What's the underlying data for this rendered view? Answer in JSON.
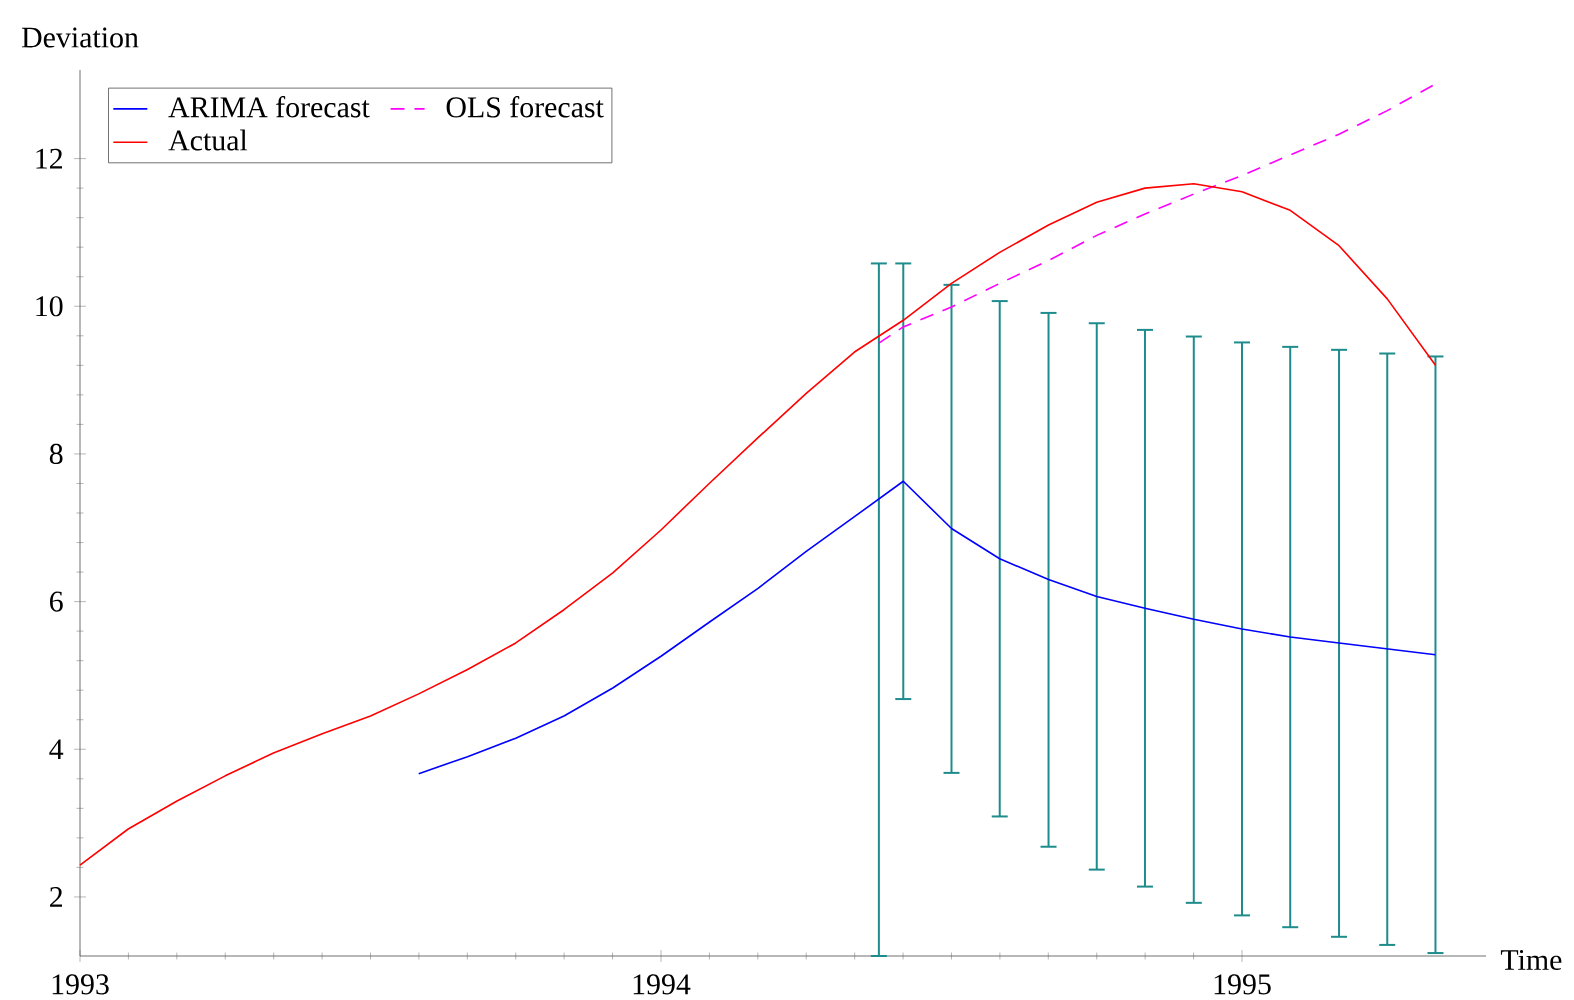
{
  "chart_data": {
    "type": "line",
    "xlabel": "Time",
    "ylabel": "Deviation",
    "xlim": [
      1993,
      1995.42
    ],
    "ylim": [
      1.2,
      13.2
    ],
    "xticks": [
      1993,
      1994,
      1995
    ],
    "yticks": [
      2,
      4,
      6,
      8,
      10,
      12
    ],
    "grid": false,
    "legend": "top left",
    "marker": "none",
    "series": [
      {
        "name": "ARIMA forecast",
        "color": "#0000ff",
        "line_style": "solid",
        "x": [
          1993.583,
          1993.667,
          1993.75,
          1993.833,
          1993.917,
          1994.0,
          1994.083,
          1994.167,
          1994.25,
          1994.333,
          1994.375,
          1994.417,
          1994.5,
          1994.583,
          1994.667,
          1994.75,
          1994.833,
          1994.917,
          1995.0,
          1995.083,
          1995.167,
          1995.25,
          1995.333
        ],
        "values": [
          3.67,
          3.9,
          4.15,
          4.45,
          4.83,
          5.26,
          5.72,
          6.18,
          6.68,
          7.15,
          7.39,
          7.63,
          6.99,
          6.58,
          6.3,
          6.07,
          5.91,
          5.76,
          5.63,
          5.52,
          5.44,
          5.36,
          5.28
        ],
        "errors": [
          null,
          null,
          null,
          null,
          null,
          null,
          null,
          null,
          null,
          null,
          [
            1.2,
            10.58
          ],
          [
            4.68,
            10.58
          ],
          [
            3.68,
            10.29
          ],
          [
            3.09,
            10.07
          ],
          [
            2.68,
            9.91
          ],
          [
            2.37,
            9.77
          ],
          [
            2.14,
            9.68
          ],
          [
            1.92,
            9.59
          ],
          [
            1.75,
            9.51
          ],
          [
            1.59,
            9.45
          ],
          [
            1.46,
            9.41
          ],
          [
            1.35,
            9.36
          ],
          [
            1.24,
            9.32
          ]
        ]
      },
      {
        "name": "OLS forecast",
        "color": "#ff00ff",
        "line_style": "dashed",
        "x": [
          1994.375,
          1994.417,
          1994.5,
          1994.583,
          1994.667,
          1994.75,
          1994.833,
          1994.917,
          1995.0,
          1995.083,
          1995.167,
          1995.25,
          1995.333
        ],
        "values": [
          9.5,
          9.72,
          9.99,
          10.31,
          10.62,
          10.96,
          11.25,
          11.52,
          11.77,
          12.05,
          12.33,
          12.65,
          13.01
        ]
      },
      {
        "name": "Actual",
        "color": "#ff0000",
        "line_style": "solid",
        "x": [
          1993.0,
          1993.083,
          1993.167,
          1993.25,
          1993.333,
          1993.417,
          1993.5,
          1993.583,
          1993.667,
          1993.75,
          1993.833,
          1993.917,
          1994.0,
          1994.083,
          1994.167,
          1994.25,
          1994.333,
          1994.417,
          1994.5,
          1994.583,
          1994.667,
          1994.75,
          1994.833,
          1994.917,
          1995.0,
          1995.083,
          1995.167,
          1995.25,
          1995.333
        ],
        "values": [
          2.43,
          2.92,
          3.3,
          3.64,
          3.95,
          4.21,
          4.45,
          4.75,
          5.08,
          5.44,
          5.89,
          6.39,
          6.97,
          7.6,
          8.22,
          8.82,
          9.38,
          9.81,
          10.31,
          10.73,
          11.1,
          11.41,
          11.6,
          11.66,
          11.55,
          11.3,
          10.82,
          10.1,
          9.2
        ]
      }
    ]
  }
}
